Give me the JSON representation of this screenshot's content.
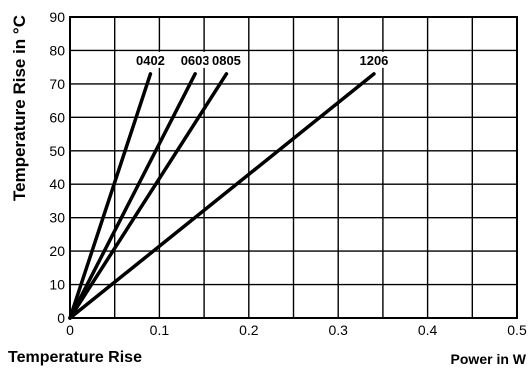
{
  "chart_data": {
    "type": "line",
    "title": "",
    "caption": "Temperature Rise",
    "xlabel": "Power in W",
    "ylabel": "Temperature Rise in °C",
    "xlim": [
      0,
      0.5
    ],
    "ylim": [
      0,
      90
    ],
    "x_ticks": [
      "0",
      "0.1",
      "0.2",
      "0.3",
      "0.4",
      "0.5"
    ],
    "y_ticks": [
      "0",
      "10",
      "20",
      "30",
      "40",
      "50",
      "60",
      "70",
      "80",
      "90"
    ],
    "grid": true,
    "series": [
      {
        "name": "0402",
        "x": [
          0,
          0.09
        ],
        "y": [
          0,
          73
        ]
      },
      {
        "name": "0603",
        "x": [
          0,
          0.14
        ],
        "y": [
          0,
          73
        ]
      },
      {
        "name": "0805",
        "x": [
          0,
          0.175
        ],
        "y": [
          0,
          73
        ]
      },
      {
        "name": "1206",
        "x": [
          0,
          0.34
        ],
        "y": [
          0,
          73
        ]
      }
    ]
  }
}
